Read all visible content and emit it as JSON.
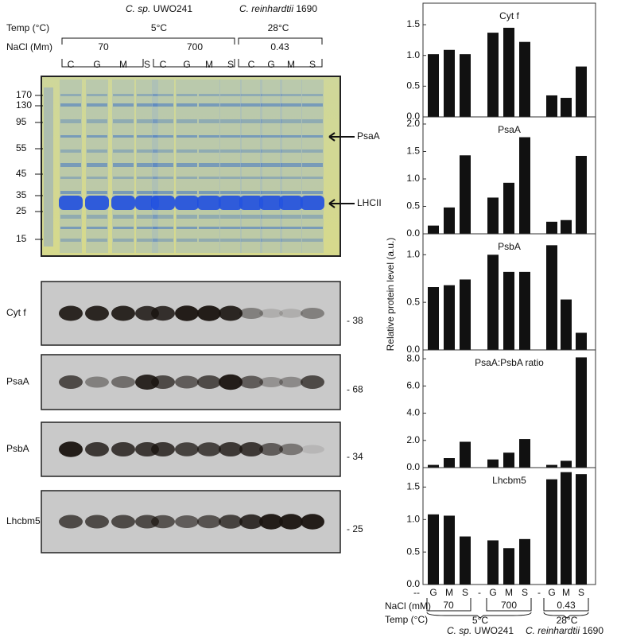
{
  "chart_data": [
    {
      "type": "bar",
      "title": "Cyt f",
      "color": "#111111",
      "ylim": [
        0,
        1.85
      ],
      "yticks": [
        {
          "value": 0,
          "label": "0.0"
        },
        {
          "value": 0.5,
          "label": "0.5"
        },
        {
          "value": 1,
          "label": "1.0"
        },
        {
          "value": 1.5,
          "label": "1.5"
        }
      ],
      "values": [
        null,
        1.02,
        1.09,
        1.02,
        null,
        1.37,
        1.45,
        1.22,
        null,
        0.35,
        0.31,
        0.82
      ]
    },
    {
      "type": "bar",
      "title": "PsaA",
      "color": "#111111",
      "ylim": [
        0,
        2.13
      ],
      "yticks": [
        {
          "value": 0,
          "label": "0.0"
        },
        {
          "value": 0.5,
          "label": "0.5"
        },
        {
          "value": 1,
          "label": "1.0"
        },
        {
          "value": 1.5,
          "label": "1.5"
        },
        {
          "value": 2,
          "label": "2.0"
        }
      ],
      "values": [
        null,
        0.15,
        0.48,
        1.43,
        null,
        0.66,
        0.93,
        1.76,
        null,
        0.22,
        0.25,
        1.42
      ]
    },
    {
      "type": "bar",
      "title": "PsbA",
      "color": "#111111",
      "ylim": [
        0,
        1.22
      ],
      "yticks": [
        {
          "value": 0,
          "label": "0.0"
        },
        {
          "value": 0.5,
          "label": "0.5"
        },
        {
          "value": 1,
          "label": "1.0"
        }
      ],
      "values": [
        null,
        0.66,
        0.68,
        0.74,
        null,
        1.0,
        0.82,
        0.82,
        null,
        1.1,
        0.53,
        0.18
      ]
    },
    {
      "type": "bar",
      "title": "PsaA:PsbA ratio",
      "color": "#111111",
      "ylim": [
        0,
        8.65
      ],
      "yticks": [
        {
          "value": 0,
          "label": "0.0"
        },
        {
          "value": 2,
          "label": "2.0"
        },
        {
          "value": 4,
          "label": "4.0"
        },
        {
          "value": 6,
          "label": "6.0"
        },
        {
          "value": 8,
          "label": "8.0"
        }
      ],
      "values": [
        null,
        0.2,
        0.7,
        1.9,
        null,
        0.6,
        1.1,
        2.1,
        null,
        0.2,
        0.5,
        8.1
      ]
    },
    {
      "type": "bar",
      "title": "Lhcbm5",
      "color": "#111111",
      "ylim": [
        0,
        1.8
      ],
      "yticks": [
        {
          "value": 0,
          "label": "0.0"
        },
        {
          "value": 0.5,
          "label": "0.5"
        },
        {
          "value": 1,
          "label": "1.0"
        },
        {
          "value": 1.5,
          "label": "1.5"
        }
      ],
      "values": [
        null,
        1.08,
        1.06,
        0.74,
        null,
        0.68,
        0.56,
        0.7,
        null,
        1.62,
        1.73,
        1.7
      ],
      "categories": [
        "--",
        "G",
        "M",
        "S",
        "-",
        "G",
        "M",
        "S",
        "-",
        "G",
        "M",
        "S"
      ]
    }
  ],
  "figure": {
    "left": {
      "temp_label": "Temp (°C)",
      "nacl_label": "NaCl (Mm)",
      "species1_italic": "C. sp.",
      "species1_strain": "UWO241",
      "species2_italic": "C. reinhardtii",
      "species2_strain": "1690",
      "temp1": "5°C",
      "temp2": "28°C",
      "nacl": [
        "70",
        "700",
        "0.43"
      ],
      "lanes": [
        "C",
        "G",
        "M",
        "S",
        "C",
        "G",
        "M",
        "S",
        "C",
        "G",
        "M",
        "S"
      ],
      "markers": [
        "170",
        "130",
        "95",
        "55",
        "45",
        "35",
        "25",
        "15"
      ],
      "arrows": [
        "PsaA",
        "LHCII"
      ],
      "blots": [
        {
          "label": "Cyt f",
          "size": "- 38"
        },
        {
          "label": "PsaA",
          "size": "- 68"
        },
        {
          "label": "PsbA",
          "size": "- 34"
        },
        {
          "label": "Lhcbm5",
          "size": "- 25"
        }
      ]
    },
    "right": {
      "ylabel": "Relative protein level (a.u.)",
      "nacl_label": "NaCl (mM)",
      "temp_label": "Temp (°C)",
      "nacl": [
        "70",
        "700",
        "0.43"
      ],
      "temp1": "5°C",
      "temp2": "28°C",
      "species1_italic": "C. sp.",
      "species1_strain": "UWO241",
      "species2_italic": "C. reinhardtii",
      "species2_strain": "1690"
    }
  }
}
